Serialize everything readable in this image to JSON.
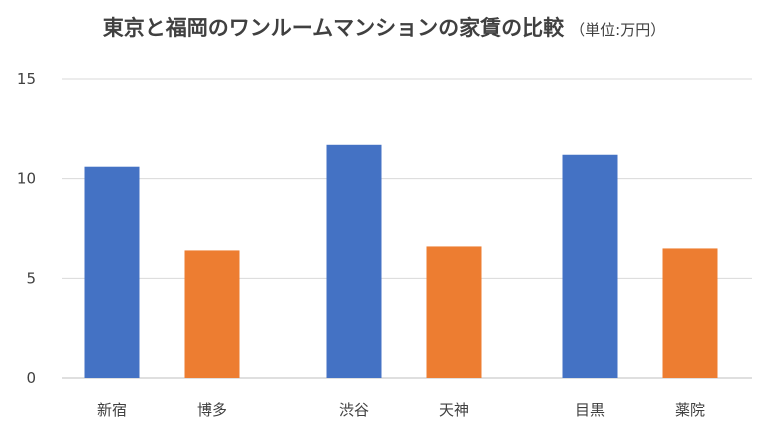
{
  "chart_data": {
    "type": "bar",
    "title": "東京と福岡のワンルームマンションの家賃の比較",
    "subtitle": "（単位:万円）",
    "categories": [
      "新宿",
      "博多",
      "渋谷",
      "天神",
      "目黒",
      "薬院"
    ],
    "values": [
      10.6,
      6.4,
      11.7,
      6.6,
      11.2,
      6.5
    ],
    "bar_colors": [
      "#4472C4",
      "#ED7D31",
      "#4472C4",
      "#ED7D31",
      "#4472C4",
      "#ED7D31"
    ],
    "xlabel": "",
    "ylabel": "",
    "ylim": [
      0,
      15
    ],
    "yticks": [
      "0",
      "5",
      "10",
      "15"
    ],
    "ytick_values": [
      0,
      5,
      10,
      15
    ],
    "grid": true,
    "legend": "none",
    "grid_color": "#d9d9d9"
  }
}
